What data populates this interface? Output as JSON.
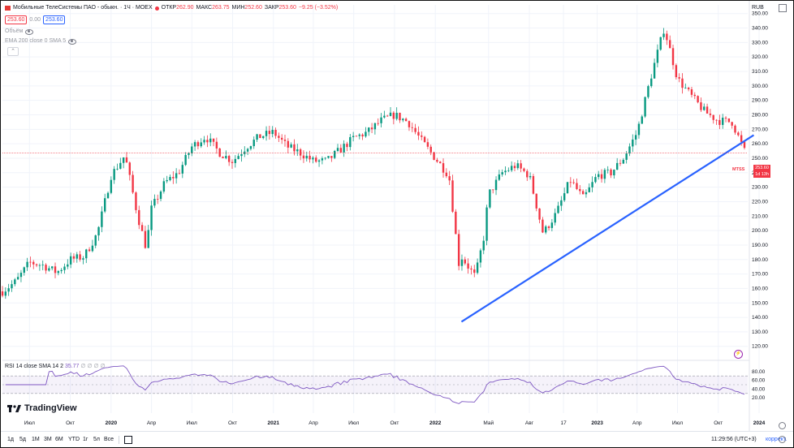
{
  "legend": {
    "title": "Мобильные ТелеСистемы ПАО - обыкн. · 1Ч · MOEX",
    "ohlc": [
      {
        "k": "ОТКР",
        "v": "262.90"
      },
      {
        "k": "МАКС",
        "v": "263.75"
      },
      {
        "k": "МИН",
        "v": "252.60"
      },
      {
        "k": "ЗАКР",
        "v": "253.60"
      },
      {
        "k": "",
        "v": "−9.25 (−3.52%)"
      }
    ],
    "bid": "253.60",
    "spread": "0.00",
    "ask": "253.60",
    "volume_label": "Объём",
    "ema_label": "EMA 200 close 0 SMA 5"
  },
  "currency": "RUB",
  "price_tag": {
    "ticker": "MTSS",
    "price": "253.60",
    "timer": "1d 13h"
  },
  "colors": {
    "up": "#089981",
    "down": "#f23645",
    "trendline": "#2962ff",
    "rsi": "#7e57c2"
  },
  "rsi": {
    "label": "RSI 14 close SMA 14 2",
    "value": "35.77",
    "extra": "∅ ∅ ∅ ∅",
    "ticks": [
      "80.00",
      "60.00",
      "40.00",
      "20.00"
    ]
  },
  "branding": "TradingView",
  "toolbar": {
    "timeframes": [
      "1д",
      "5д",
      "1М",
      "3М",
      "6М",
      "YTD",
      "1г",
      "5л",
      "Все"
    ],
    "clock": "11:29:56 (UTC+3)",
    "mode": "коррект."
  },
  "chart_data": {
    "type": "candlestick",
    "y_ticks": [
      350,
      340,
      330,
      320,
      310,
      300,
      290,
      280,
      270,
      260,
      250,
      240,
      230,
      220,
      210,
      200,
      190,
      180,
      170,
      160,
      150,
      140,
      130,
      120
    ],
    "y_tick_labels": [
      "350.00",
      "340.00",
      "330.00",
      "320.00",
      "310.00",
      "300.00",
      "290.00",
      "280.00",
      "270.00",
      "260.00",
      "250.00",
      "240.00",
      "230.00",
      "220.00",
      "210.00",
      "200.00",
      "190.00",
      "180.00",
      "170.00",
      "160.00",
      "150.00",
      "140.00",
      "130.00",
      "120.00"
    ],
    "x_labels": [
      "Июл",
      "Окт",
      "2020",
      "Апр",
      "Июл",
      "Окт",
      "2021",
      "Апр",
      "Июл",
      "Окт",
      "2022",
      "Май",
      "Авг",
      "17",
      "2023",
      "Апр",
      "Июл",
      "Окт",
      "2024"
    ],
    "x_label_dates": [
      "2019-07",
      "2019-10",
      "2020-01",
      "2020-04",
      "2020-07",
      "2020-10",
      "2021-01",
      "2021-04",
      "2021-07",
      "2021-10",
      "2022-01",
      "2022-05",
      "2022-08",
      "2022-10-17",
      "2023-01",
      "2023-04",
      "2023-07",
      "2023-10",
      "2024-01"
    ],
    "x_range": [
      "2019-05",
      "2024-01"
    ],
    "y_range": [
      112,
      356
    ],
    "close_path": [
      [
        "2019-05",
        158
      ],
      [
        "2019-06",
        165
      ],
      [
        "2019-07",
        178
      ],
      [
        "2019-08",
        176
      ],
      [
        "2019-09",
        171
      ],
      [
        "2019-10",
        180
      ],
      [
        "2019-11",
        182
      ],
      [
        "2019-12",
        198
      ],
      [
        "2020-01",
        238
      ],
      [
        "2020-02",
        252
      ],
      [
        "2020-03",
        210
      ],
      [
        "2020-03-20",
        188
      ],
      [
        "2020-04",
        215
      ],
      [
        "2020-05",
        233
      ],
      [
        "2020-06",
        240
      ],
      [
        "2020-07",
        258
      ],
      [
        "2020-08",
        265
      ],
      [
        "2020-09",
        254
      ],
      [
        "2020-10",
        248
      ],
      [
        "2020-11",
        258
      ],
      [
        "2020-12",
        265
      ],
      [
        "2021-01",
        268
      ],
      [
        "2021-02",
        258
      ],
      [
        "2021-03",
        254
      ],
      [
        "2021-04",
        248
      ],
      [
        "2021-05",
        248
      ],
      [
        "2021-06",
        256
      ],
      [
        "2021-07",
        264
      ],
      [
        "2021-08",
        268
      ],
      [
        "2021-09",
        276
      ],
      [
        "2021-10",
        280
      ],
      [
        "2021-11",
        275
      ],
      [
        "2021-12",
        262
      ],
      [
        "2022-01",
        250
      ],
      [
        "2022-02",
        238
      ],
      [
        "2022-02-25",
        172
      ],
      [
        "2022-03",
        182
      ],
      [
        "2022-04",
        168
      ],
      [
        "2022-04-20",
        195
      ],
      [
        "2022-05",
        225
      ],
      [
        "2022-06",
        240
      ],
      [
        "2022-07",
        245
      ],
      [
        "2022-08",
        238
      ],
      [
        "2022-09",
        198
      ],
      [
        "2022-10",
        212
      ],
      [
        "2022-11",
        235
      ],
      [
        "2022-12",
        222
      ],
      [
        "2023-01",
        238
      ],
      [
        "2023-02",
        240
      ],
      [
        "2023-03",
        250
      ],
      [
        "2023-04",
        268
      ],
      [
        "2023-05",
        305
      ],
      [
        "2023-06",
        340
      ],
      [
        "2023-07",
        305
      ],
      [
        "2023-08",
        293
      ],
      [
        "2023-09",
        282
      ],
      [
        "2023-10",
        276
      ],
      [
        "2023-11",
        275
      ],
      [
        "2023-12",
        253.6
      ]
    ],
    "trendline": {
      "start": [
        "2022-03-01",
        137
      ],
      "end": [
        "2023-12-20",
        266
      ]
    },
    "last_price": 253.6,
    "rsi_levels": {
      "upper": 70,
      "lower": 30
    }
  }
}
